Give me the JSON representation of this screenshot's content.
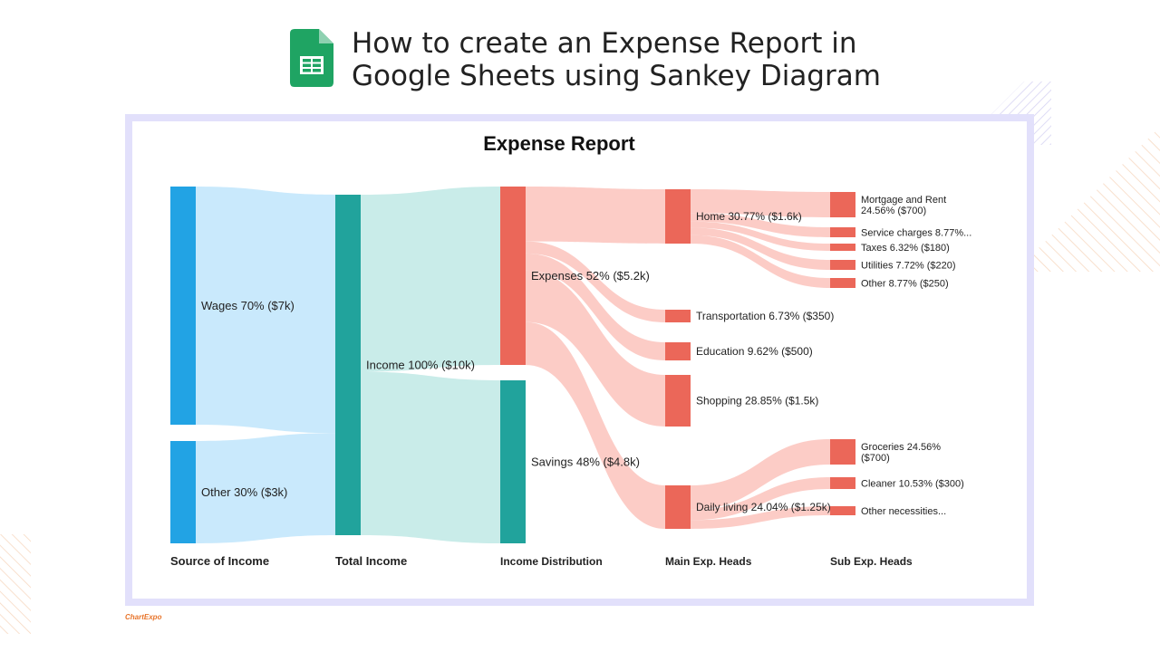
{
  "header": {
    "title_line1": "How to create an Expense Report in",
    "title_line2": "Google Sheets using Sankey Diagram",
    "logo_icon": "google-sheets-icon"
  },
  "chart": {
    "title": "Expense Report",
    "columns": [
      "Source of Income",
      "Total Income",
      "Income Distribution",
      "Main Exp. Heads",
      "Sub Exp. Heads"
    ],
    "nodes": [
      {
        "id": "wages",
        "col": 0,
        "value": 7000,
        "label": "Wages 70% ($7k)",
        "color": "#22a3e4"
      },
      {
        "id": "other_src",
        "col": 0,
        "value": 3000,
        "label": "Other 30% ($3k)",
        "color": "#22a3e4"
      },
      {
        "id": "income",
        "col": 1,
        "value": 10000,
        "label": "Income 100% ($10k)",
        "color": "#21a39c"
      },
      {
        "id": "expenses",
        "col": 2,
        "value": 5200,
        "label": "Expenses 52% ($5.2k)",
        "color": "#eb6759"
      },
      {
        "id": "savings",
        "col": 2,
        "value": 4800,
        "label": "Savings 48% ($4.8k)",
        "color": "#21a39c"
      },
      {
        "id": "home",
        "col": 3,
        "value": 1600,
        "label": "Home 30.77% ($1.6k)",
        "color": "#eb6759"
      },
      {
        "id": "transport",
        "col": 3,
        "value": 350,
        "label": "Transportation 6.73% ($350)",
        "color": "#eb6759"
      },
      {
        "id": "education",
        "col": 3,
        "value": 500,
        "label": "Education 9.62% ($500)",
        "color": "#eb6759"
      },
      {
        "id": "shopping",
        "col": 3,
        "value": 1500,
        "label": "Shopping 28.85% ($1.5k)",
        "color": "#eb6759"
      },
      {
        "id": "daily",
        "col": 3,
        "value": 1250,
        "label": "Daily living 24.04% ($1.25k)",
        "color": "#eb6759"
      },
      {
        "id": "mortgage",
        "col": 4,
        "value": 700,
        "label": "Mortgage and Rent\n24.56% ($700)",
        "color": "#eb6759"
      },
      {
        "id": "service",
        "col": 4,
        "value": 250,
        "label": "Service charges 8.77%...",
        "color": "#eb6759"
      },
      {
        "id": "taxes",
        "col": 4,
        "value": 180,
        "label": "Taxes 6.32% ($180)",
        "color": "#eb6759"
      },
      {
        "id": "utilities",
        "col": 4,
        "value": 220,
        "label": "Utilities 7.72% ($220)",
        "color": "#eb6759"
      },
      {
        "id": "other_home",
        "col": 4,
        "value": 250,
        "label": "Other 8.77% ($250)",
        "color": "#eb6759"
      },
      {
        "id": "groceries",
        "col": 4,
        "value": 700,
        "label": "Groceries 24.56%\n($700)",
        "color": "#eb6759"
      },
      {
        "id": "cleaner",
        "col": 4,
        "value": 300,
        "label": "Cleaner 10.53% ($300)",
        "color": "#eb6759"
      },
      {
        "id": "other_nec",
        "col": 4,
        "value": 250,
        "label": "Other necessities...",
        "color": "#eb6759"
      }
    ],
    "links": [
      {
        "source": "wages",
        "target": "income",
        "value": 7000
      },
      {
        "source": "other_src",
        "target": "income",
        "value": 3000
      },
      {
        "source": "income",
        "target": "expenses",
        "value": 5200
      },
      {
        "source": "income",
        "target": "savings",
        "value": 4800
      },
      {
        "source": "expenses",
        "target": "home",
        "value": 1600
      },
      {
        "source": "expenses",
        "target": "transport",
        "value": 350
      },
      {
        "source": "expenses",
        "target": "education",
        "value": 500
      },
      {
        "source": "expenses",
        "target": "shopping",
        "value": 1500
      },
      {
        "source": "expenses",
        "target": "daily",
        "value": 1250
      },
      {
        "source": "home",
        "target": "mortgage",
        "value": 700
      },
      {
        "source": "home",
        "target": "service",
        "value": 250
      },
      {
        "source": "home",
        "target": "taxes",
        "value": 180
      },
      {
        "source": "home",
        "target": "utilities",
        "value": 220
      },
      {
        "source": "home",
        "target": "other_home",
        "value": 250
      },
      {
        "source": "daily",
        "target": "groceries",
        "value": 700
      },
      {
        "source": "daily",
        "target": "cleaner",
        "value": 300
      },
      {
        "source": "daily",
        "target": "other_nec",
        "value": 250
      }
    ],
    "link_colors": {
      "blue": "#bfe5fb",
      "teal": "#bfe9e5",
      "red": "#fbc3bc"
    }
  },
  "branding": {
    "text": "ChartExpo"
  }
}
